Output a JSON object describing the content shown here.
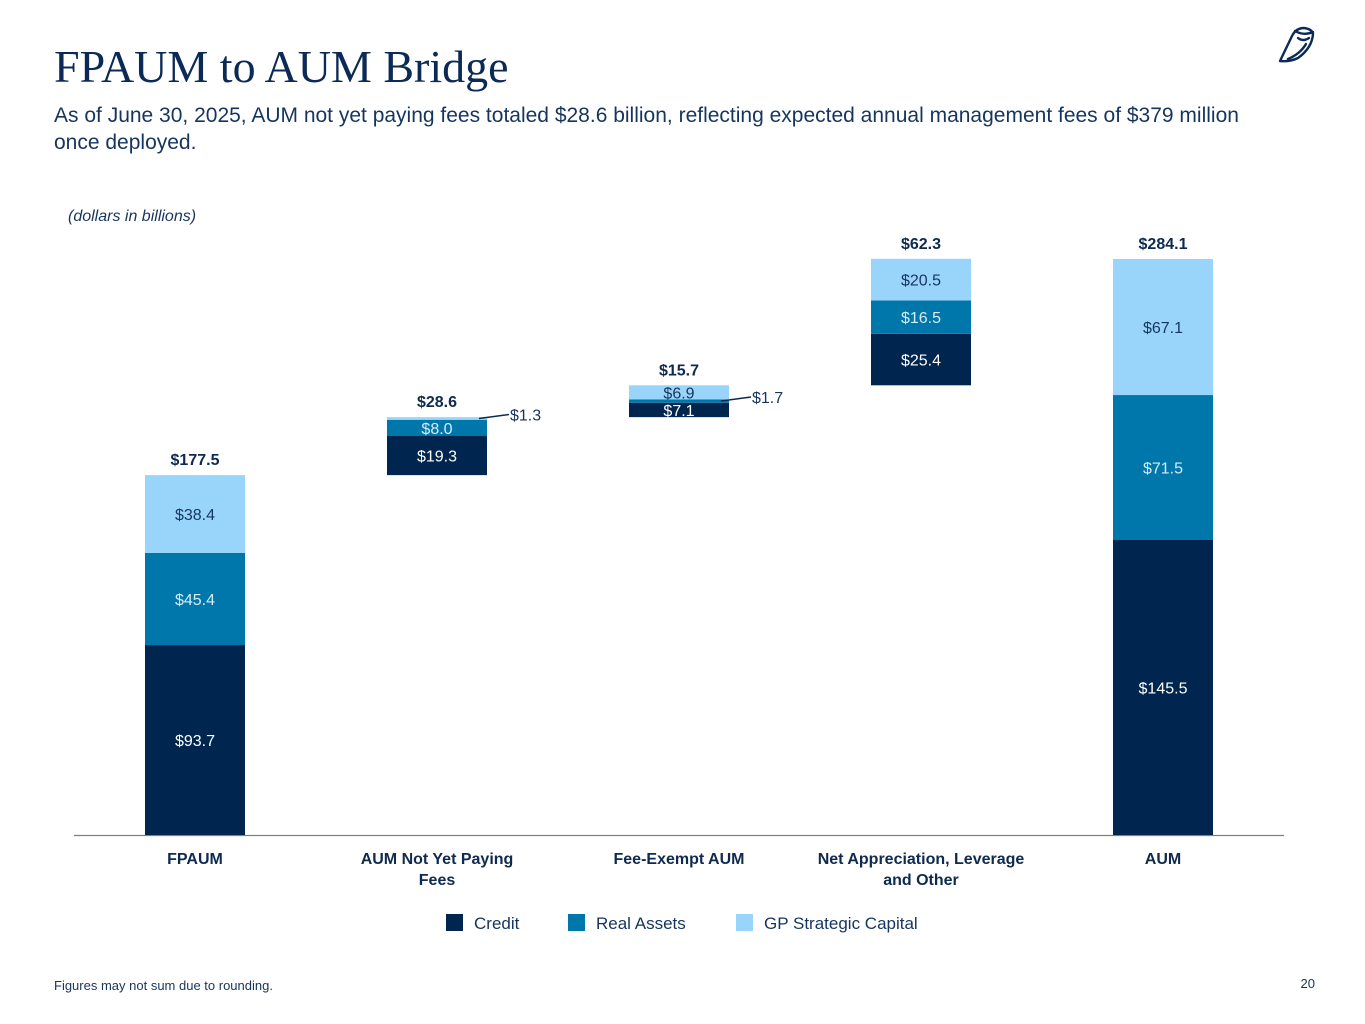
{
  "header": {
    "title": "FPAUM to AUM Bridge",
    "subtitle": "As of June 30, 2025, AUM not yet paying fees totaled $28.6 billion, reflecting expected annual management fees of $379 million once deployed.",
    "units_note": "(dollars in billions)",
    "logo_icon": "owl-logo-icon"
  },
  "footer": {
    "note": "Figures may not sum due to rounding.",
    "page_number": "20"
  },
  "chart_data": {
    "type": "waterfall-stacked-bar",
    "categories": [
      [
        "FPAUM"
      ],
      [
        "AUM Not Yet Paying",
        "Fees"
      ],
      [
        "Fee-Exempt AUM"
      ],
      [
        "Net Appreciation, Leverage",
        "and Other"
      ],
      [
        "AUM"
      ]
    ],
    "category_kind": [
      "total",
      "step",
      "step",
      "step",
      "total"
    ],
    "series": [
      {
        "name": "Credit",
        "color": "#00254f",
        "label_color": "#ffffff",
        "values": [
          93.7,
          19.3,
          7.1,
          25.4,
          145.5
        ],
        "labels": [
          "$93.7",
          "$19.3",
          "$7.1",
          "$25.4",
          "$145.5"
        ]
      },
      {
        "name": "Real Assets",
        "color": "#0077ab",
        "label_color": "#d6ecf8",
        "values": [
          45.4,
          8.0,
          1.7,
          16.5,
          71.5
        ],
        "labels": [
          "$45.4",
          "$8.0",
          "$1.7",
          "$16.5",
          "$71.5"
        ]
      },
      {
        "name": "GP Strategic Capital",
        "color": "#99d5fb",
        "label_color": "#16355e",
        "values": [
          38.4,
          1.3,
          6.9,
          20.5,
          67.1
        ],
        "labels": [
          "$38.4",
          "$1.3",
          "$6.9",
          "$20.5",
          "$67.1"
        ]
      }
    ],
    "callouts": [
      {
        "category": 1,
        "series": 2
      },
      {
        "category": 2,
        "series": 1
      }
    ],
    "totals": [
      "$177.5",
      "$28.6",
      "$15.7",
      "$62.3",
      "$284.1"
    ],
    "ylim": [
      0,
      284.1
    ],
    "grid": false,
    "legend_position": "bottom"
  }
}
